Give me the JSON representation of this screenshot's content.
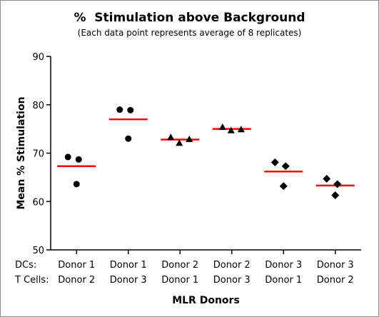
{
  "chart_data": {
    "type": "scatter",
    "title": "%  Stimulation above Background",
    "subtitle": "(Each data point represents average of 8 replicates)",
    "xlabel": "MLR Donors",
    "ylabel": "Mean % Stimulation",
    "ylim": [
      50,
      90
    ],
    "yticks": [
      50,
      60,
      70,
      80,
      90
    ],
    "row_labels": [
      "DCs:",
      "T Cells:"
    ],
    "grid": false,
    "groups": [
      {
        "dc": "Donor 1",
        "tcell": "Donor 2",
        "marker": "circle",
        "mean": 67.3,
        "values": [
          69.2,
          68.7,
          63.6
        ]
      },
      {
        "dc": "Donor 1",
        "tcell": "Donor 3",
        "marker": "circle",
        "mean": 77.0,
        "values": [
          79.0,
          78.9,
          73.0
        ]
      },
      {
        "dc": "Donor 2",
        "tcell": "Donor 1",
        "marker": "triangle",
        "mean": 72.8,
        "values": [
          73.3,
          72.1,
          72.9
        ]
      },
      {
        "dc": "Donor 2",
        "tcell": "Donor 3",
        "marker": "triangle",
        "mean": 75.0,
        "values": [
          75.4,
          74.7,
          74.9
        ]
      },
      {
        "dc": "Donor 3",
        "tcell": "Donor 1",
        "marker": "diamond",
        "mean": 66.2,
        "values": [
          68.1,
          67.3,
          63.2
        ]
      },
      {
        "dc": "Donor 3",
        "tcell": "Donor 2",
        "marker": "diamond",
        "mean": 63.3,
        "values": [
          64.7,
          63.6,
          61.3
        ]
      }
    ],
    "colors": {
      "points": "#000000",
      "mean_line": "#ff0000",
      "axis": "#000000"
    }
  }
}
